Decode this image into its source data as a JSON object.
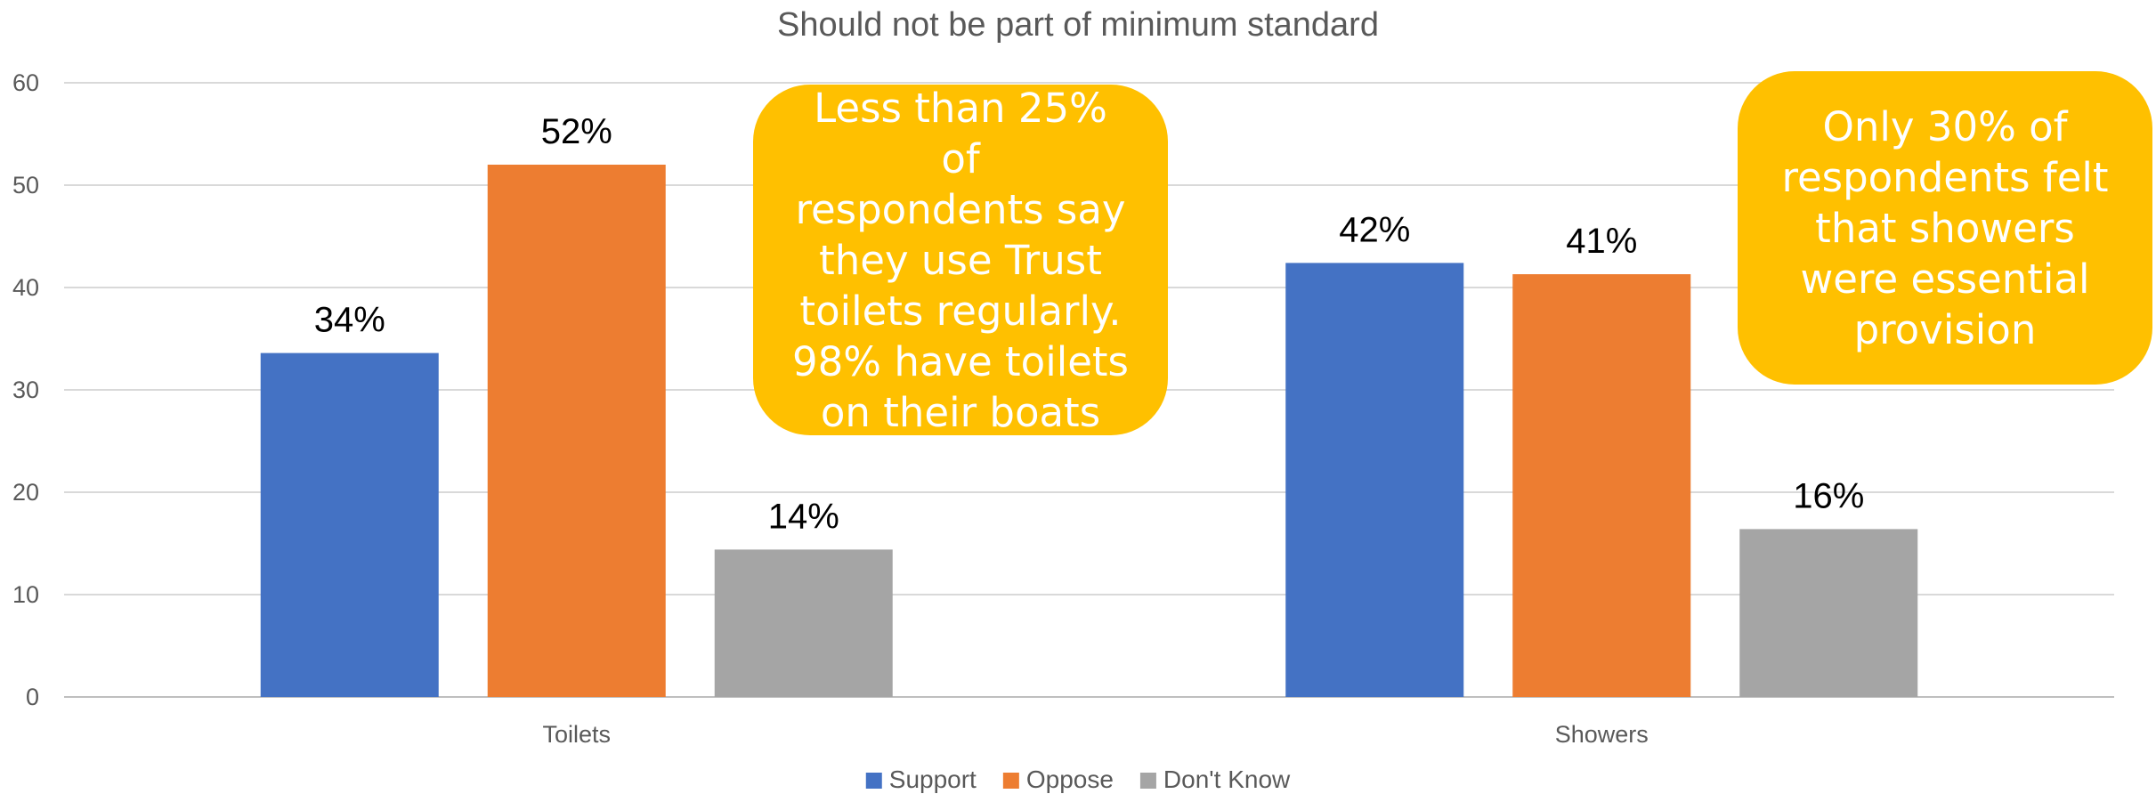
{
  "chart_data": {
    "type": "bar",
    "title": "Should not be part of minimum standard",
    "categories": [
      "Toilets",
      "Showers"
    ],
    "series": [
      {
        "name": "Support",
        "color": "#4472C4",
        "values": [
          33.6,
          42.4
        ],
        "labels": [
          "34%",
          "42%"
        ]
      },
      {
        "name": "Oppose",
        "color": "#ED7D31",
        "values": [
          52.0,
          41.3
        ],
        "labels": [
          "52%",
          "41%"
        ]
      },
      {
        "name": "Don't Know",
        "color": "#A5A5A5",
        "values": [
          14.4,
          16.4
        ],
        "labels": [
          "14%",
          "16%"
        ]
      }
    ],
    "yticks": [
      "0",
      "10",
      "20",
      "30",
      "40",
      "50",
      "60"
    ],
    "ylim": [
      0,
      60
    ],
    "grid": true,
    "legend_position": "bottom",
    "xlabel": "",
    "ylabel": ""
  },
  "annotations": [
    {
      "text": "Less than 25% of\nrespondents say\nthey use Trust\ntoilets regularly.\n98% have toilets\non their boats",
      "color": "#FFC000"
    },
    {
      "text": "Only 30% of\nrespondents felt\nthat showers\nwere essential\nprovision",
      "color": "#FFC000"
    }
  ]
}
